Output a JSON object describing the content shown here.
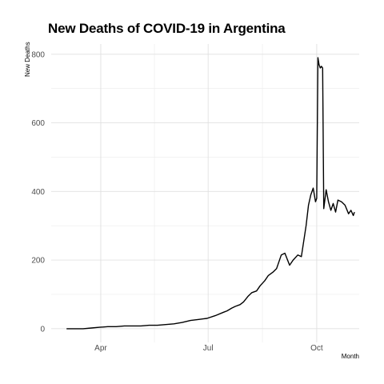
{
  "chart_data": {
    "type": "line",
    "title": "New Deaths of COVID-19 in Argentina",
    "xlabel": "Month",
    "ylabel": "New Deaths",
    "x_ticks": [
      {
        "date": "2020-04-01",
        "label": "Apr"
      },
      {
        "date": "2020-07-01",
        "label": "Jul"
      },
      {
        "date": "2020-10-01",
        "label": "Oct"
      }
    ],
    "xlim": [
      "2020-02-19",
      "2020-11-06"
    ],
    "y_ticks": [
      0,
      200,
      400,
      600,
      800
    ],
    "ylim": [
      -40,
      830
    ],
    "grid": true,
    "line_color": "#000000",
    "series": [
      {
        "x": [
          "2020-03-03",
          "2020-03-10",
          "2020-03-17",
          "2020-03-24",
          "2020-03-31",
          "2020-04-07",
          "2020-04-14",
          "2020-04-21",
          "2020-04-28",
          "2020-05-05",
          "2020-05-12",
          "2020-05-19",
          "2020-05-26",
          "2020-06-02",
          "2020-06-09",
          "2020-06-16",
          "2020-06-23",
          "2020-06-30",
          "2020-07-07",
          "2020-07-14",
          "2020-07-17",
          "2020-07-21",
          "2020-07-24",
          "2020-07-28",
          "2020-07-31",
          "2020-08-04",
          "2020-08-07",
          "2020-08-11",
          "2020-08-14",
          "2020-08-18",
          "2020-08-21",
          "2020-08-25",
          "2020-08-28",
          "2020-09-01",
          "2020-09-04",
          "2020-09-08",
          "2020-09-11",
          "2020-09-15",
          "2020-09-18",
          "2020-09-22",
          "2020-09-24",
          "2020-09-26",
          "2020-09-28",
          "2020-09-30",
          "2020-10-01",
          "2020-10-02",
          "2020-10-03",
          "2020-10-04",
          "2020-10-05",
          "2020-10-06",
          "2020-10-07",
          "2020-10-09",
          "2020-10-11",
          "2020-10-13",
          "2020-10-15",
          "2020-10-17",
          "2020-10-19",
          "2020-10-22",
          "2020-10-25",
          "2020-10-28",
          "2020-10-30",
          "2020-11-01",
          "2020-11-02"
        ],
        "y": [
          0,
          0,
          0,
          2,
          4,
          6,
          6,
          8,
          8,
          8,
          10,
          10,
          12,
          14,
          18,
          24,
          27,
          30,
          38,
          48,
          52,
          60,
          65,
          70,
          78,
          95,
          105,
          110,
          125,
          140,
          155,
          165,
          175,
          215,
          220,
          185,
          200,
          215,
          210,
          300,
          360,
          390,
          410,
          370,
          380,
          790,
          770,
          760,
          765,
          760,
          350,
          405,
          370,
          345,
          365,
          340,
          375,
          370,
          360,
          335,
          345,
          330,
          340
        ]
      }
    ]
  }
}
